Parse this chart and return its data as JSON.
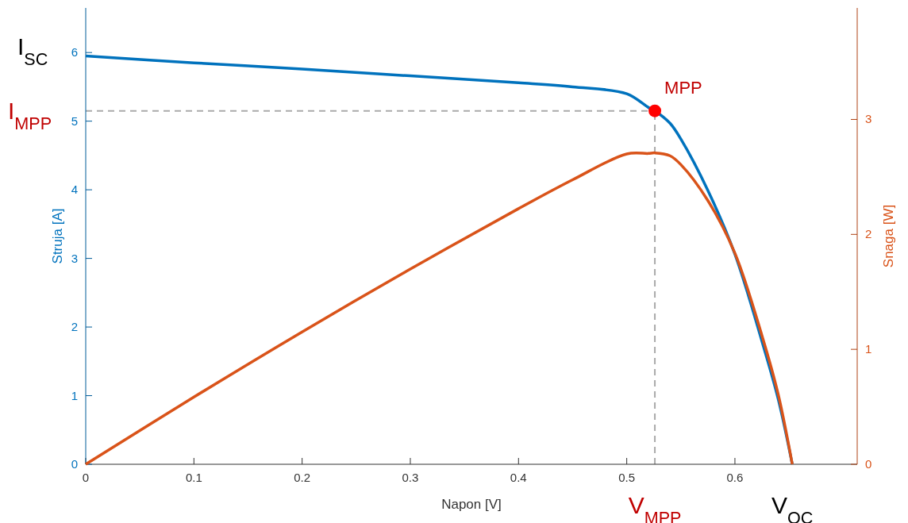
{
  "chart_data": {
    "type": "line",
    "xlabel": "Napon [V]",
    "ylabel": "Struja [A]",
    "y2label": "Snaga [W]",
    "xlim": [
      0,
      0.713
    ],
    "xticks": [
      0,
      0.1,
      0.2,
      0.3,
      0.4,
      0.5,
      0.6
    ],
    "ylim": [
      0,
      6.65
    ],
    "yticks": [
      0,
      1,
      2,
      3,
      4,
      5,
      6
    ],
    "y2lim": [
      0,
      3.97
    ],
    "y2ticks": [
      0,
      1,
      2,
      3
    ],
    "grid": false,
    "marker": "none",
    "line_style": "solid",
    "series": [
      {
        "color": "#0072bd",
        "x": [
          0,
          0.1,
          0.2,
          0.3,
          0.4,
          0.45,
          0.5,
          0.52,
          0.526,
          0.54,
          0.55,
          0.575,
          0.6,
          0.625,
          0.64,
          0.653
        ],
        "values": [
          5.95,
          5.85,
          5.76,
          5.66,
          5.56,
          5.5,
          5.4,
          5.2,
          5.15,
          4.97,
          4.74,
          3.99,
          3.06,
          1.79,
          0.95,
          0
        ]
      },
      {
        "color": "#d95319",
        "axis": "y2",
        "x": [
          0,
          0.1,
          0.2,
          0.3,
          0.4,
          0.45,
          0.5,
          0.52,
          0.526,
          0.54,
          0.55,
          0.575,
          0.6,
          0.625,
          0.64,
          0.653
        ],
        "values": [
          0,
          0.585,
          1.152,
          1.698,
          2.224,
          2.475,
          2.7,
          2.704,
          2.709,
          2.684,
          2.607,
          2.294,
          1.836,
          1.119,
          0.608,
          0
        ]
      },
      {
        "type": "scatter",
        "name": "MPP",
        "color": "#ff0000",
        "marker": "circle",
        "x": [
          0.526
        ],
        "values": [
          5.15
        ]
      }
    ],
    "ref_lines": [
      {
        "axis": "y",
        "value": 5.15,
        "label": "I$_{MPP}$",
        "color": "#aaaaaa",
        "line_style": "dashed"
      },
      {
        "axis": "x",
        "value": 0.526,
        "label": "V$_{MPP}$",
        "color": "#aaaaaa",
        "line_style": "dashed"
      }
    ],
    "annotations": [
      {
        "text": "I$_{SC}$",
        "x": 0,
        "y": 5.95
      },
      {
        "text": "V$_{OC}$",
        "x": 0.653,
        "y": 0
      }
    ]
  }
}
